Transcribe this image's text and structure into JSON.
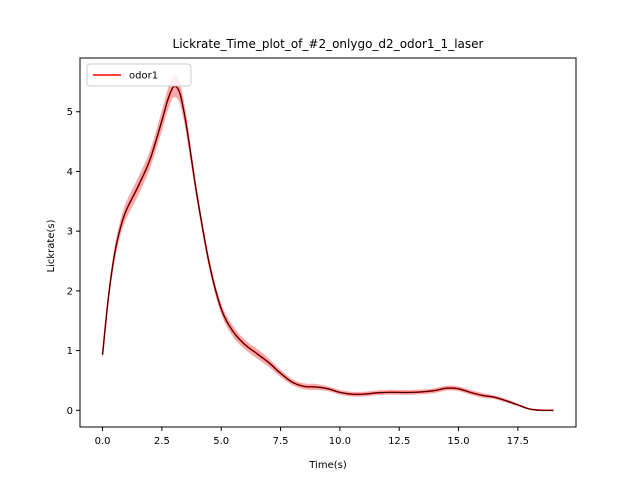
{
  "chart_data": {
    "type": "line",
    "title": "Lickrate_Time_plot_of_#2_onlygo_d2_odor1_1_laser",
    "xlabel": "Time(s)",
    "ylabel": "Lickrate(s)",
    "xlim": [
      -0.95,
      19.95
    ],
    "ylim": [
      -0.28,
      5.9
    ],
    "xticks": [
      0.0,
      2.5,
      5.0,
      7.5,
      10.0,
      12.5,
      15.0,
      17.5
    ],
    "xtick_labels": [
      "0.0",
      "2.5",
      "5.0",
      "7.5",
      "10.0",
      "12.5",
      "15.0",
      "17.5"
    ],
    "yticks": [
      0,
      1,
      2,
      3,
      4,
      5
    ],
    "ytick_labels": [
      "0",
      "1",
      "2",
      "3",
      "4",
      "5"
    ],
    "grid": false,
    "legend": {
      "position": "top-left",
      "entries": [
        "odor1"
      ]
    },
    "series": [
      {
        "name": "odor1",
        "color": "#ff0000",
        "band_color": "#f4a0a0",
        "x": [
          0,
          0.25,
          0.5,
          0.75,
          1.0,
          1.5,
          2.0,
          2.5,
          2.75,
          3.0,
          3.25,
          3.5,
          3.75,
          4.0,
          4.5,
          5.0,
          5.5,
          6.0,
          6.5,
          7.0,
          7.5,
          8.0,
          8.5,
          9.0,
          9.5,
          10.0,
          10.5,
          11.0,
          11.5,
          12.0,
          12.5,
          13.0,
          13.5,
          14.0,
          14.5,
          15.0,
          15.5,
          16.0,
          16.5,
          17.0,
          17.5,
          18.0,
          18.5,
          19.0
        ],
        "y": [
          0.93,
          1.9,
          2.6,
          3.05,
          3.35,
          3.75,
          4.2,
          4.85,
          5.2,
          5.42,
          5.32,
          4.85,
          4.2,
          3.55,
          2.45,
          1.7,
          1.32,
          1.1,
          0.95,
          0.8,
          0.62,
          0.47,
          0.4,
          0.39,
          0.36,
          0.3,
          0.27,
          0.27,
          0.29,
          0.3,
          0.3,
          0.3,
          0.31,
          0.33,
          0.37,
          0.36,
          0.3,
          0.25,
          0.22,
          0.16,
          0.09,
          0.02,
          0.0,
          0.0
        ],
        "band": [
          0.08,
          0.1,
          0.12,
          0.13,
          0.14,
          0.15,
          0.15,
          0.17,
          0.18,
          0.18,
          0.18,
          0.16,
          0.13,
          0.1,
          0.09,
          0.09,
          0.09,
          0.08,
          0.08,
          0.07,
          0.06,
          0.05,
          0.05,
          0.05,
          0.04,
          0.04,
          0.04,
          0.04,
          0.04,
          0.04,
          0.04,
          0.04,
          0.04,
          0.04,
          0.04,
          0.04,
          0.04,
          0.04,
          0.03,
          0.03,
          0.02,
          0.01,
          0.01,
          0.01
        ]
      }
    ]
  }
}
